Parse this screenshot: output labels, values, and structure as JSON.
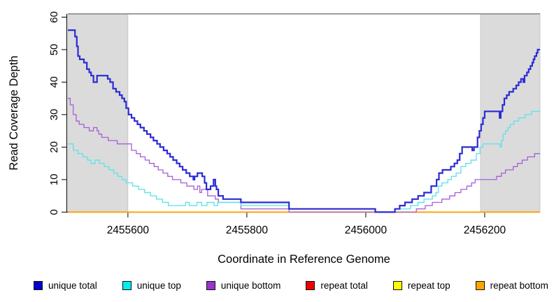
{
  "chart_data": {
    "type": "line",
    "subtype": "step",
    "title": "",
    "xlabel": "Coordinate in Reference Genome",
    "ylabel": "Read Coverage Depth",
    "xlim": [
      2455499,
      2456293
    ],
    "ylim": [
      0,
      61
    ],
    "x_ticks": [
      2455600,
      2455800,
      2456000,
      2456200
    ],
    "x_tick_labels": [
      "2455600",
      "2455800",
      "2456000",
      "2456200"
    ],
    "y_ticks": [
      0,
      10,
      20,
      30,
      40,
      50,
      60
    ],
    "y_tick_labels": [
      "0",
      "10",
      "20",
      "30",
      "40",
      "50",
      "60"
    ],
    "grid": false,
    "legend_position": "bottom",
    "top_rule_y": 61,
    "top_rule_color": "#8A8A8A",
    "shade_color": "#DBDBDB",
    "shade_border_color": "#BDBDBD",
    "axis_color": "#000000",
    "shaded_regions": [
      {
        "name": "left-repeat-region",
        "from": 2455499,
        "to": 2455600
      },
      {
        "name": "right-repeat-region",
        "from": 2456193,
        "to": 2456293
      }
    ],
    "series": [
      {
        "name": "unique-total",
        "label": "unique total",
        "color": "#2B2BD5",
        "legend_color": "#0000CC",
        "line_width": 2.2,
        "draw_index": 5,
        "points": [
          [
            2455499,
            56
          ],
          [
            2455511,
            54
          ],
          [
            2455514,
            51
          ],
          [
            2455516,
            48
          ],
          [
            2455519,
            47
          ],
          [
            2455526,
            46
          ],
          [
            2455531,
            44
          ],
          [
            2455535,
            43
          ],
          [
            2455538,
            42
          ],
          [
            2455542,
            40
          ],
          [
            2455548,
            42
          ],
          [
            2455566,
            41
          ],
          [
            2455570,
            40
          ],
          [
            2455575,
            38
          ],
          [
            2455580,
            37
          ],
          [
            2455586,
            36
          ],
          [
            2455590,
            35
          ],
          [
            2455594,
            34
          ],
          [
            2455597,
            32
          ],
          [
            2455601,
            30
          ],
          [
            2455606,
            29
          ],
          [
            2455611,
            28
          ],
          [
            2455616,
            27
          ],
          [
            2455621,
            26
          ],
          [
            2455627,
            25
          ],
          [
            2455632,
            24
          ],
          [
            2455638,
            23
          ],
          [
            2455643,
            22
          ],
          [
            2455649,
            21
          ],
          [
            2455654,
            20
          ],
          [
            2455660,
            19
          ],
          [
            2455666,
            18
          ],
          [
            2455671,
            17
          ],
          [
            2455676,
            16
          ],
          [
            2455682,
            15
          ],
          [
            2455687,
            14
          ],
          [
            2455692,
            13
          ],
          [
            2455698,
            12
          ],
          [
            2455704,
            11
          ],
          [
            2455710,
            10
          ],
          [
            2455712,
            11
          ],
          [
            2455717,
            12
          ],
          [
            2455725,
            11
          ],
          [
            2455729,
            9
          ],
          [
            2455732,
            7
          ],
          [
            2455739,
            8
          ],
          [
            2455744,
            10
          ],
          [
            2455747,
            8
          ],
          [
            2455749,
            7
          ],
          [
            2455752,
            5
          ],
          [
            2455760,
            4
          ],
          [
            2455790,
            3
          ],
          [
            2455871,
            1
          ],
          [
            2456016,
            0
          ],
          [
            2456049,
            1
          ],
          [
            2456057,
            2
          ],
          [
            2456066,
            3
          ],
          [
            2456078,
            4
          ],
          [
            2456088,
            5
          ],
          [
            2456098,
            6
          ],
          [
            2456110,
            8
          ],
          [
            2456119,
            10
          ],
          [
            2456123,
            12
          ],
          [
            2456129,
            13
          ],
          [
            2456143,
            14
          ],
          [
            2456149,
            15
          ],
          [
            2456154,
            16
          ],
          [
            2456158,
            18
          ],
          [
            2456162,
            20
          ],
          [
            2456179,
            19
          ],
          [
            2456182,
            20
          ],
          [
            2456188,
            23
          ],
          [
            2456191,
            25
          ],
          [
            2456194,
            27
          ],
          [
            2456197,
            29
          ],
          [
            2456200,
            31
          ],
          [
            2456225,
            29
          ],
          [
            2456227,
            31
          ],
          [
            2456230,
            33
          ],
          [
            2456233,
            35
          ],
          [
            2456237,
            36
          ],
          [
            2456241,
            37
          ],
          [
            2456248,
            38
          ],
          [
            2456253,
            39
          ],
          [
            2456257,
            40
          ],
          [
            2456261,
            41
          ],
          [
            2456265,
            40
          ],
          [
            2456267,
            42
          ],
          [
            2456271,
            43
          ],
          [
            2456274,
            44
          ],
          [
            2456277,
            45
          ],
          [
            2456280,
            46
          ],
          [
            2456282,
            47
          ],
          [
            2456284,
            48
          ],
          [
            2456287,
            49
          ],
          [
            2456289,
            50
          ]
        ]
      },
      {
        "name": "unique-top",
        "label": "unique top",
        "color": "#63E3EC",
        "legend_color": "#00EEEE",
        "line_width": 1.4,
        "draw_index": 4,
        "points": [
          [
            2455499,
            21
          ],
          [
            2455508,
            19
          ],
          [
            2455516,
            18
          ],
          [
            2455524,
            17
          ],
          [
            2455532,
            16
          ],
          [
            2455538,
            15
          ],
          [
            2455545,
            16
          ],
          [
            2455552,
            15
          ],
          [
            2455560,
            14
          ],
          [
            2455568,
            13
          ],
          [
            2455576,
            12
          ],
          [
            2455583,
            11
          ],
          [
            2455590,
            10
          ],
          [
            2455597,
            9
          ],
          [
            2455608,
            8
          ],
          [
            2455618,
            7
          ],
          [
            2455628,
            6
          ],
          [
            2455638,
            5
          ],
          [
            2455648,
            4
          ],
          [
            2455658,
            3
          ],
          [
            2455668,
            2
          ],
          [
            2455697,
            3
          ],
          [
            2455703,
            2
          ],
          [
            2455716,
            3
          ],
          [
            2455724,
            2
          ],
          [
            2455733,
            3
          ],
          [
            2455745,
            2
          ],
          [
            2455751,
            3
          ],
          [
            2455790,
            2
          ],
          [
            2455871,
            1
          ],
          [
            2456016,
            0
          ],
          [
            2456049,
            1
          ],
          [
            2456075,
            2
          ],
          [
            2456088,
            3
          ],
          [
            2456098,
            4
          ],
          [
            2456112,
            5
          ],
          [
            2456118,
            6
          ],
          [
            2456122,
            8
          ],
          [
            2456128,
            9
          ],
          [
            2456138,
            10
          ],
          [
            2456144,
            11
          ],
          [
            2456152,
            12
          ],
          [
            2456160,
            14
          ],
          [
            2456168,
            15
          ],
          [
            2456177,
            16
          ],
          [
            2456186,
            18
          ],
          [
            2456192,
            20
          ],
          [
            2456197,
            21
          ],
          [
            2456226,
            20
          ],
          [
            2456228,
            22
          ],
          [
            2456231,
            24
          ],
          [
            2456235,
            25
          ],
          [
            2456239,
            26
          ],
          [
            2456243,
            27
          ],
          [
            2456249,
            28
          ],
          [
            2456257,
            29
          ],
          [
            2456268,
            30
          ],
          [
            2456279,
            31
          ]
        ]
      },
      {
        "name": "unique-bottom",
        "label": "unique bottom",
        "color": "#A55ED8",
        "legend_color": "#9933CC",
        "line_width": 1.3,
        "draw_index": 3,
        "points": [
          [
            2455499,
            35
          ],
          [
            2455503,
            33
          ],
          [
            2455508,
            30
          ],
          [
            2455513,
            28
          ],
          [
            2455518,
            27
          ],
          [
            2455526,
            26
          ],
          [
            2455535,
            25
          ],
          [
            2455542,
            26
          ],
          [
            2455548,
            25
          ],
          [
            2455551,
            24
          ],
          [
            2455556,
            23
          ],
          [
            2455567,
            22
          ],
          [
            2455582,
            21
          ],
          [
            2455606,
            19
          ],
          [
            2455614,
            18
          ],
          [
            2455621,
            17
          ],
          [
            2455629,
            16
          ],
          [
            2455636,
            15
          ],
          [
            2455644,
            14
          ],
          [
            2455651,
            13
          ],
          [
            2455659,
            12
          ],
          [
            2455667,
            11
          ],
          [
            2455675,
            10
          ],
          [
            2455689,
            9
          ],
          [
            2455699,
            8
          ],
          [
            2455711,
            7
          ],
          [
            2455717,
            8
          ],
          [
            2455721,
            6
          ],
          [
            2455724,
            7
          ],
          [
            2455734,
            5
          ],
          [
            2455747,
            4
          ],
          [
            2455752,
            3
          ],
          [
            2455790,
            1
          ],
          [
            2455871,
            0
          ],
          [
            2456085,
            1
          ],
          [
            2456100,
            2
          ],
          [
            2456112,
            3
          ],
          [
            2456128,
            4
          ],
          [
            2456141,
            5
          ],
          [
            2456150,
            6
          ],
          [
            2456160,
            7
          ],
          [
            2456170,
            8
          ],
          [
            2456178,
            9
          ],
          [
            2456184,
            10
          ],
          [
            2456220,
            11
          ],
          [
            2456228,
            12
          ],
          [
            2456235,
            13
          ],
          [
            2456248,
            14
          ],
          [
            2456255,
            15
          ],
          [
            2456263,
            16
          ],
          [
            2456272,
            17
          ],
          [
            2456284,
            18
          ]
        ]
      },
      {
        "name": "repeat-total",
        "label": "repeat total",
        "color": "#DD0000",
        "legend_color": "#EE0000",
        "line_width": 1.4,
        "draw_index": 0,
        "points": [
          [
            2455499,
            0
          ]
        ]
      },
      {
        "name": "repeat-top",
        "label": "repeat top",
        "color": "#EEEE00",
        "legend_color": "#FFFF00",
        "line_width": 1.4,
        "draw_index": 1,
        "points": [
          [
            2455499,
            0
          ]
        ]
      },
      {
        "name": "repeat-bottom",
        "label": "repeat bottom",
        "color": "#FF9E00",
        "legend_color": "#FFA500",
        "line_width": 1.8,
        "draw_index": 2,
        "points": [
          [
            2455499,
            0
          ]
        ]
      }
    ]
  }
}
